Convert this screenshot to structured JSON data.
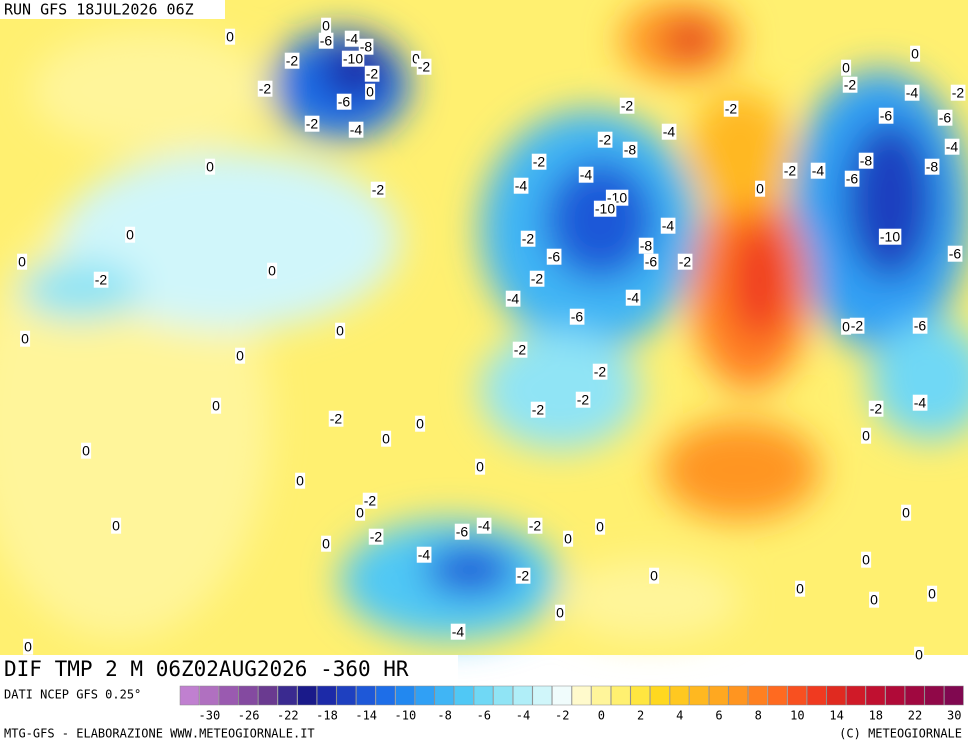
{
  "header": {
    "run": "RUN GFS 18JUL2026 06Z",
    "title": "DIF TMP 2 M 06Z02AUG2026 -360 HR",
    "source": "DATI NCEP GFS 0.25°",
    "credit": "MTG-GFS - ELABORAZIONE WWW.METEOGIORNALE.IT",
    "copyright": "(C) METEOGIORNALE"
  },
  "legend": {
    "colors": [
      "#c080d0",
      "#b070c0",
      "#9a5ab0",
      "#844aa0",
      "#6a3a90",
      "#3a2a90",
      "#1a1a8a",
      "#1c2aa8",
      "#1e40c0",
      "#1e58d8",
      "#1e6ee8",
      "#2288f0",
      "#30a0f5",
      "#40b5f5",
      "#50c8f5",
      "#70d8f5",
      "#90e4f5",
      "#b0eef8",
      "#d0f6fa",
      "#f0fcfc",
      "#fffacc",
      "#fff59a",
      "#fff070",
      "#ffe640",
      "#ffd820",
      "#ffc820",
      "#ffb820",
      "#ffa820",
      "#ff9520",
      "#ff8020",
      "#ff6a20",
      "#f85020",
      "#f03a20",
      "#e02a20",
      "#d01a28",
      "#c01030",
      "#b00a38",
      "#a00840",
      "#900848",
      "#800850"
    ],
    "ticks": [
      -30,
      -26,
      -22,
      -18,
      -14,
      -10,
      -8,
      -6,
      -4,
      -2,
      0,
      2,
      4,
      6,
      8,
      10,
      14,
      18,
      22,
      30
    ]
  },
  "contour_labels": [
    0,
    -6,
    -4,
    -8,
    -10,
    -2,
    -2,
    0,
    -2,
    0,
    -2,
    0,
    -6,
    -2,
    -4,
    0,
    -2,
    0,
    0,
    -2,
    0,
    0,
    0,
    0,
    0,
    0,
    0,
    0,
    -2,
    -2,
    -2,
    -8,
    -4,
    -2,
    -4,
    -4,
    -10,
    -10,
    -4,
    -2,
    -6,
    -8,
    -6,
    -2,
    -2,
    -4,
    -4,
    -6,
    -2,
    -2,
    -2,
    -2,
    -2,
    0,
    0,
    0,
    0,
    -2,
    0,
    -2,
    0,
    -4,
    -6,
    -4,
    -2,
    0,
    0,
    -2,
    0,
    0,
    -4,
    0,
    -2,
    -4,
    -2,
    -6,
    -6,
    -4,
    -8,
    -8,
    -6,
    -4,
    -2,
    0,
    -10,
    -6,
    0,
    -2,
    -6,
    -2,
    -4,
    0,
    0,
    0,
    0,
    0,
    0,
    0,
    0
  ]
}
